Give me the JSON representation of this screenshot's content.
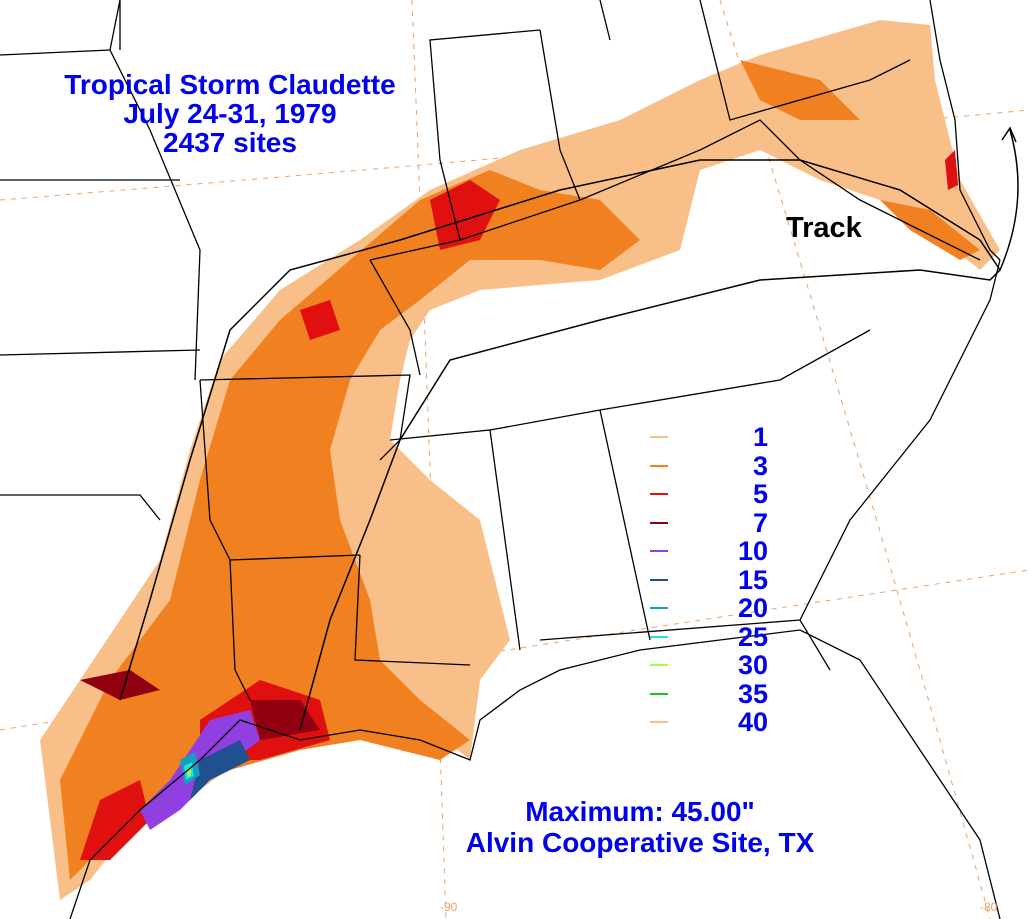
{
  "title": {
    "line1": "Tropical Storm Claudette",
    "line2": "July 24-31, 1979",
    "line3": "2437 sites"
  },
  "track_label": "Track",
  "legend": {
    "items": [
      {
        "value": "1",
        "color": "#f8c088"
      },
      {
        "value": "3",
        "color": "#f08020"
      },
      {
        "value": "5",
        "color": "#e01010"
      },
      {
        "value": "7",
        "color": "#900010"
      },
      {
        "value": "10",
        "color": "#9040e0"
      },
      {
        "value": "15",
        "color": "#205090"
      },
      {
        "value": "20",
        "color": "#10a0c0"
      },
      {
        "value": "25",
        "color": "#20e0e0"
      },
      {
        "value": "30",
        "color": "#a0ff40"
      },
      {
        "value": "35",
        "color": "#20c020"
      },
      {
        "value": "40",
        "color": "#f8c088"
      }
    ]
  },
  "maximum": {
    "line1": "Maximum:  45.00\"",
    "line2": "Alvin Cooperative Site, TX"
  },
  "longitude_labels": [
    "-90",
    "-80"
  ],
  "colors": {
    "text_blue": "#0000ee",
    "graticule": "#f0a060",
    "boundaries": "#000000"
  }
}
